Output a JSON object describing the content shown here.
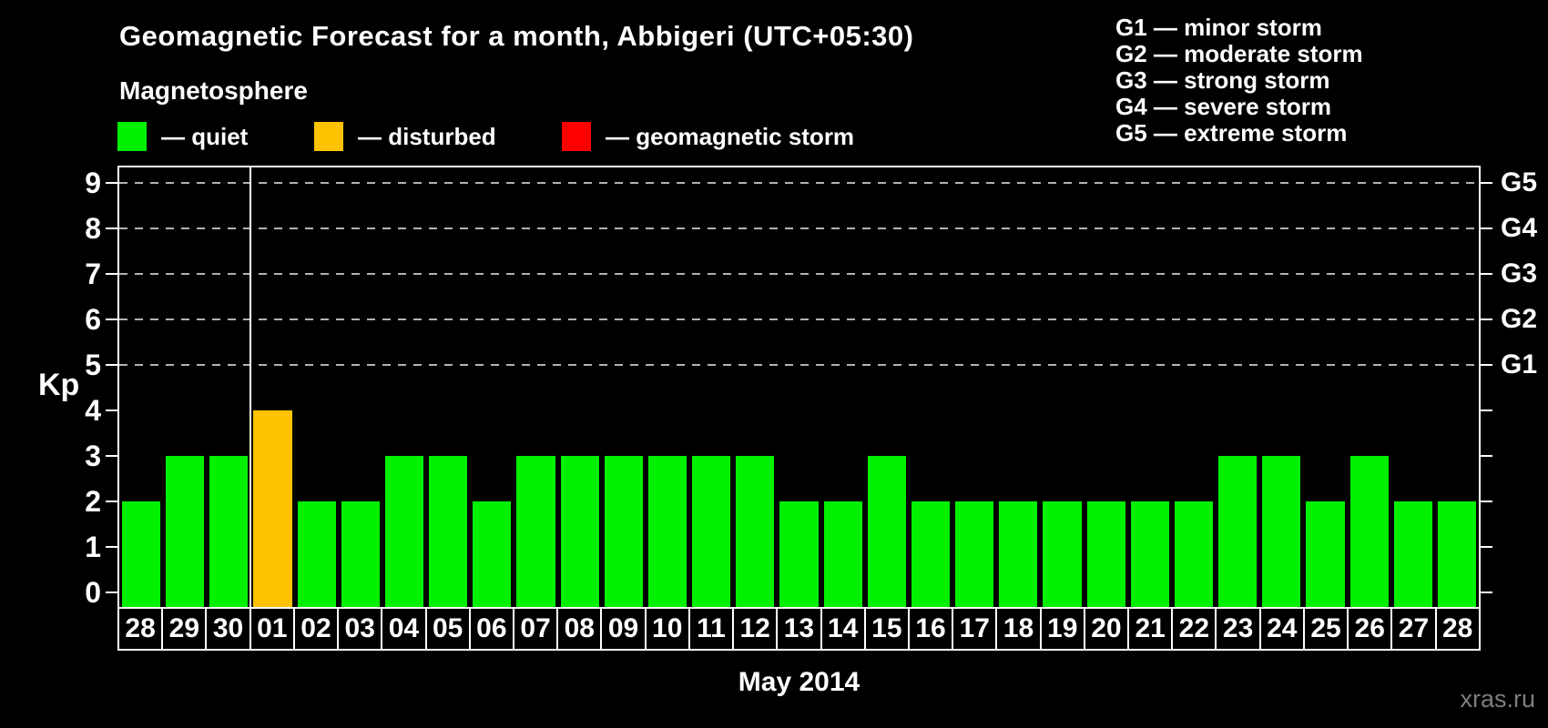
{
  "header": {
    "subtitle": "Magnetosphere"
  },
  "legend": {
    "items": [
      {
        "label": "— quiet",
        "color": "#00f000",
        "icon": "green-swatch"
      },
      {
        "label": "— disturbed",
        "color": "#ffc200",
        "icon": "orange-swatch"
      },
      {
        "label": "— geomagnetic storm",
        "color": "#ff0000",
        "icon": "red-swatch"
      }
    ]
  },
  "storm_legend": {
    "items": [
      "G1 — minor storm",
      "G2 — moderate storm",
      "G3 — strong storm",
      "G4 — severe storm",
      "G5 — extreme storm"
    ]
  },
  "footer": {
    "watermark": "xras.ru"
  },
  "chart_data": {
    "type": "bar",
    "title": "Geomagnetic Forecast for a month, Abbigeri (UTC+05:30)",
    "xlabel": "May 2014",
    "ylabel": "Kp",
    "ylim": [
      0,
      9.35
    ],
    "grid": "dashed horizontal at Kp 5-9 only",
    "legend_position": "top",
    "categories": [
      "28",
      "29",
      "30",
      "01",
      "02",
      "03",
      "04",
      "05",
      "06",
      "07",
      "08",
      "09",
      "10",
      "11",
      "12",
      "13",
      "14",
      "15",
      "16",
      "17",
      "18",
      "19",
      "20",
      "21",
      "22",
      "23",
      "24",
      "25",
      "26",
      "27",
      "28"
    ],
    "values": [
      2,
      3,
      3,
      4,
      2,
      2,
      3,
      3,
      2,
      3,
      3,
      3,
      3,
      3,
      3,
      2,
      2,
      3,
      2,
      2,
      2,
      2,
      2,
      2,
      2,
      3,
      3,
      2,
      3,
      2,
      2
    ],
    "divider_after": 2,
    "left_tick_values": [
      0,
      1,
      2,
      3,
      4,
      5,
      6,
      7,
      8,
      9
    ],
    "gridlines": [
      5,
      6,
      7,
      8,
      9
    ],
    "right_axis_labels": {
      "5": "G1",
      "6": "G2",
      "7": "G3",
      "8": "G4",
      "9": "G5"
    },
    "colors": {
      "quiet": "#00f000",
      "disturbed": "#ffc200",
      "storm": "#ff0000"
    },
    "color_rule": "Kp<=3 quiet green, Kp=4 disturbed orange, Kp>=5 storm red"
  }
}
